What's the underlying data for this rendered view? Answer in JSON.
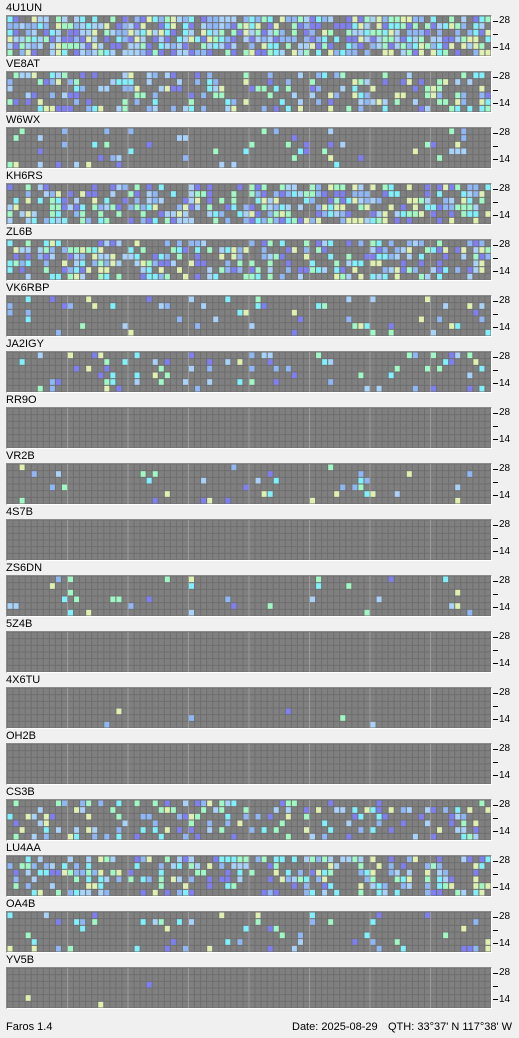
{
  "app": {
    "version_label": "Faros 1.4"
  },
  "status": {
    "date": "Date: 2025-08-29",
    "qth": "QTH: 33°37' N  117°38' W"
  },
  "scale": {
    "top": "28",
    "bottom": "14"
  },
  "colors": {
    "background": "#f0f0f0",
    "grid_bg": "#6e6e6e",
    "cell_empty": "#808080",
    "level_1": "#7f7ff2",
    "level_2": "#8fb7f6",
    "level_3": "#a9d2fb",
    "level_4": "#7ff0fc",
    "level_5": "#a0f8c4",
    "level_6": "#e0f0b0"
  },
  "beacons": [
    {
      "call": "4U1UN",
      "activity": 0.78
    },
    {
      "call": "VE8AT",
      "activity": 0.42
    },
    {
      "call": "W6WX",
      "activity": 0.12
    },
    {
      "call": "KH6RS",
      "activity": 0.62
    },
    {
      "call": "ZL6B",
      "activity": 0.48
    },
    {
      "call": "VK6RBP",
      "activity": 0.1
    },
    {
      "call": "JA2IGY",
      "activity": 0.16
    },
    {
      "call": "RR9O",
      "activity": 0.0
    },
    {
      "call": "VR2B",
      "activity": 0.07
    },
    {
      "call": "4S7B",
      "activity": 0.0
    },
    {
      "call": "ZS6DN",
      "activity": 0.07
    },
    {
      "call": "5Z4B",
      "activity": 0.0
    },
    {
      "call": "4X6TU",
      "activity": 0.01
    },
    {
      "call": "OH2B",
      "activity": 0.0
    },
    {
      "call": "CS3B",
      "activity": 0.3
    },
    {
      "call": "LU4AA",
      "activity": 0.42
    },
    {
      "call": "OA4B",
      "activity": 0.12
    },
    {
      "call": "YV5B",
      "activity": 0.01
    }
  ]
}
